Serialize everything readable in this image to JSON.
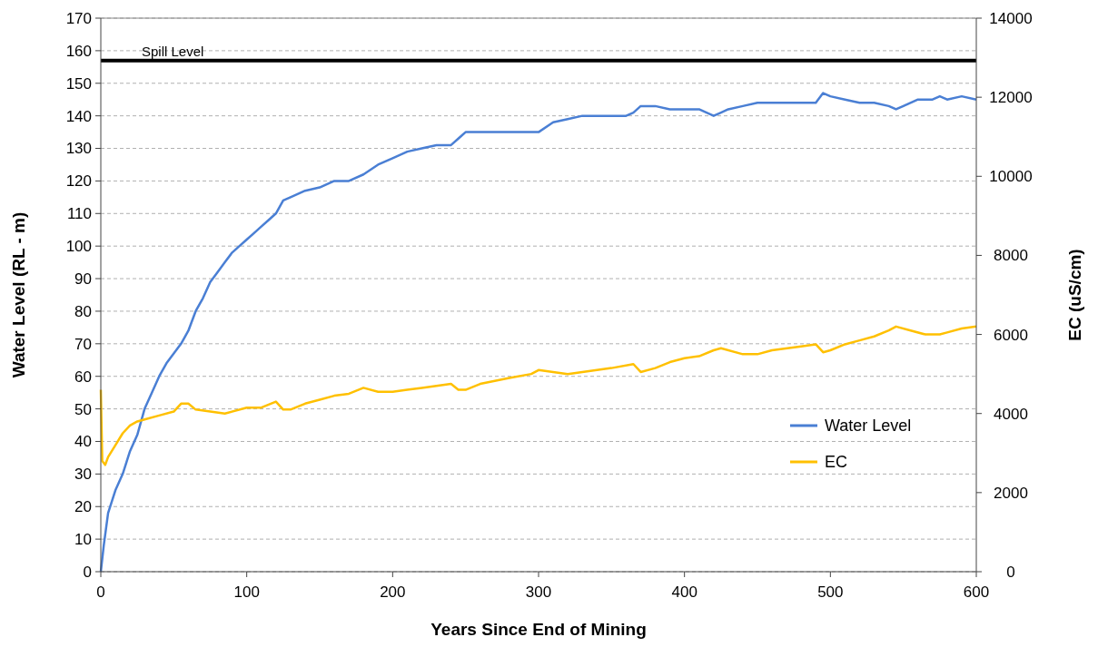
{
  "chart_data": {
    "type": "line",
    "xlabel": "Years Since End of Mining",
    "ylabel": "Water Level (RL - m)",
    "y2label": "EC (uS/cm)",
    "xlim": [
      0,
      600
    ],
    "xticks": [
      0,
      100,
      200,
      300,
      400,
      500,
      600
    ],
    "ylim": [
      0,
      170
    ],
    "yticks": [
      0,
      10,
      20,
      30,
      40,
      50,
      60,
      70,
      80,
      90,
      100,
      110,
      120,
      130,
      140,
      150,
      160,
      170
    ],
    "y2lim": [
      0,
      14000
    ],
    "y2ticks": [
      0,
      2000,
      4000,
      6000,
      8000,
      10000,
      12000,
      14000
    ],
    "grid": "y",
    "legend": "right",
    "ref_lines": [
      {
        "axis": "y",
        "value": 157,
        "label": "Spill Level",
        "color": "#000000"
      }
    ],
    "series": [
      {
        "name": "Water Level",
        "color": "#4a7fd4",
        "x": [
          0,
          2,
          5,
          10,
          15,
          20,
          25,
          30,
          35,
          40,
          45,
          50,
          55,
          60,
          65,
          70,
          75,
          80,
          85,
          90,
          95,
          100,
          105,
          110,
          115,
          120,
          125,
          130,
          140,
          150,
          160,
          170,
          180,
          190,
          200,
          210,
          220,
          230,
          240,
          245,
          250,
          260,
          270,
          280,
          290,
          300,
          310,
          320,
          330,
          340,
          350,
          360,
          365,
          370,
          380,
          390,
          400,
          410,
          420,
          425,
          430,
          440,
          450,
          460,
          470,
          480,
          490,
          495,
          500,
          510,
          520,
          530,
          540,
          545,
          550,
          560,
          570,
          575,
          580,
          590,
          600
        ],
        "values": [
          0,
          8,
          18,
          25,
          30,
          37,
          42,
          50,
          55,
          60,
          64,
          67,
          70,
          74,
          80,
          84,
          89,
          92,
          95,
          98,
          100,
          102,
          104,
          106,
          108,
          110,
          114,
          115,
          117,
          118,
          120,
          120,
          122,
          125,
          127,
          129,
          130,
          131,
          131,
          133,
          135,
          135,
          135,
          135,
          135,
          135,
          138,
          139,
          140,
          140,
          140,
          140,
          141,
          143,
          143,
          142,
          142,
          142,
          140,
          141,
          142,
          143,
          144,
          144,
          144,
          144,
          144,
          147,
          146,
          145,
          144,
          144,
          143,
          142,
          143,
          145,
          145,
          146,
          145,
          146,
          145
        ]
      },
      {
        "name": "EC",
        "color": "#ffc000",
        "axis": "y2",
        "x": [
          0,
          1,
          3,
          5,
          10,
          15,
          20,
          25,
          30,
          40,
          50,
          55,
          60,
          65,
          75,
          85,
          100,
          110,
          120,
          125,
          130,
          140,
          150,
          160,
          170,
          180,
          190,
          200,
          210,
          220,
          240,
          245,
          250,
          260,
          280,
          295,
          300,
          310,
          320,
          330,
          340,
          350,
          365,
          370,
          380,
          390,
          400,
          410,
          420,
          425,
          440,
          450,
          460,
          480,
          490,
          495,
          500,
          510,
          520,
          530,
          540,
          545,
          555,
          565,
          575,
          580,
          590,
          600
        ],
        "values": [
          4600,
          2800,
          2700,
          2900,
          3200,
          3500,
          3700,
          3800,
          3850,
          3950,
          4050,
          4250,
          4250,
          4100,
          4050,
          4000,
          4150,
          4150,
          4300,
          4100,
          4100,
          4250,
          4350,
          4450,
          4500,
          4650,
          4550,
          4550,
          4600,
          4650,
          4750,
          4600,
          4600,
          4750,
          4900,
          5000,
          5100,
          5050,
          5000,
          5050,
          5100,
          5150,
          5250,
          5050,
          5150,
          5300,
          5400,
          5450,
          5600,
          5650,
          5500,
          5500,
          5600,
          5700,
          5750,
          5550,
          5600,
          5750,
          5850,
          5950,
          6100,
          6200,
          6100,
          6000,
          6000,
          6050,
          6150,
          6200
        ]
      }
    ]
  }
}
